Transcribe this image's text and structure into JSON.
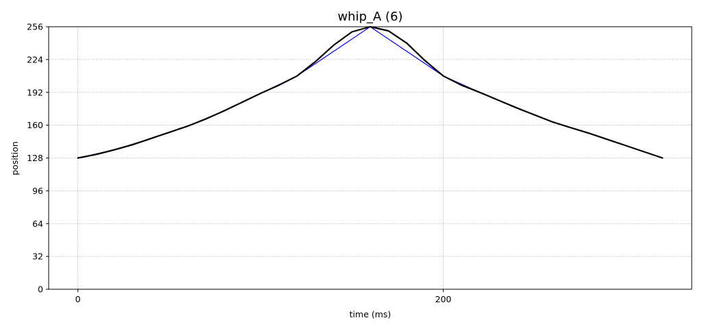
{
  "chart_data": {
    "type": "line",
    "title": "whip_A (6)",
    "xlabel": "time (ms)",
    "ylabel": "position",
    "xlim": [
      -16,
      336
    ],
    "ylim": [
      0,
      256
    ],
    "xticks": [
      0,
      200
    ],
    "yticks": [
      0,
      32,
      64,
      96,
      128,
      160,
      192,
      224,
      256
    ],
    "grid": true,
    "series": [
      {
        "color": "#0000ff",
        "width": 1.2,
        "x": [
          0,
          20,
          40,
          60,
          80,
          100,
          120,
          160,
          200,
          220,
          240,
          260,
          280,
          300,
          320
        ],
        "y": [
          128,
          136,
          147,
          159,
          174,
          191,
          208,
          256,
          208,
          192,
          177,
          163,
          152,
          140,
          128
        ]
      },
      {
        "color": "#000000",
        "width": 2.2,
        "x": [
          0,
          10,
          20,
          30,
          40,
          50,
          60,
          70,
          80,
          90,
          100,
          110,
          120,
          130,
          140,
          150,
          160,
          170,
          180,
          190,
          200,
          210,
          220,
          230,
          240,
          250,
          260,
          270,
          280,
          290,
          300,
          310,
          320
        ],
        "y": [
          128,
          131.5,
          136,
          141,
          147,
          153,
          159,
          166,
          174,
          182.5,
          191,
          199,
          208,
          222,
          238,
          251,
          256,
          252,
          240,
          223,
          208,
          199,
          192,
          184.5,
          177,
          170,
          163,
          157.5,
          152,
          146,
          140,
          134,
          128
        ]
      }
    ]
  }
}
